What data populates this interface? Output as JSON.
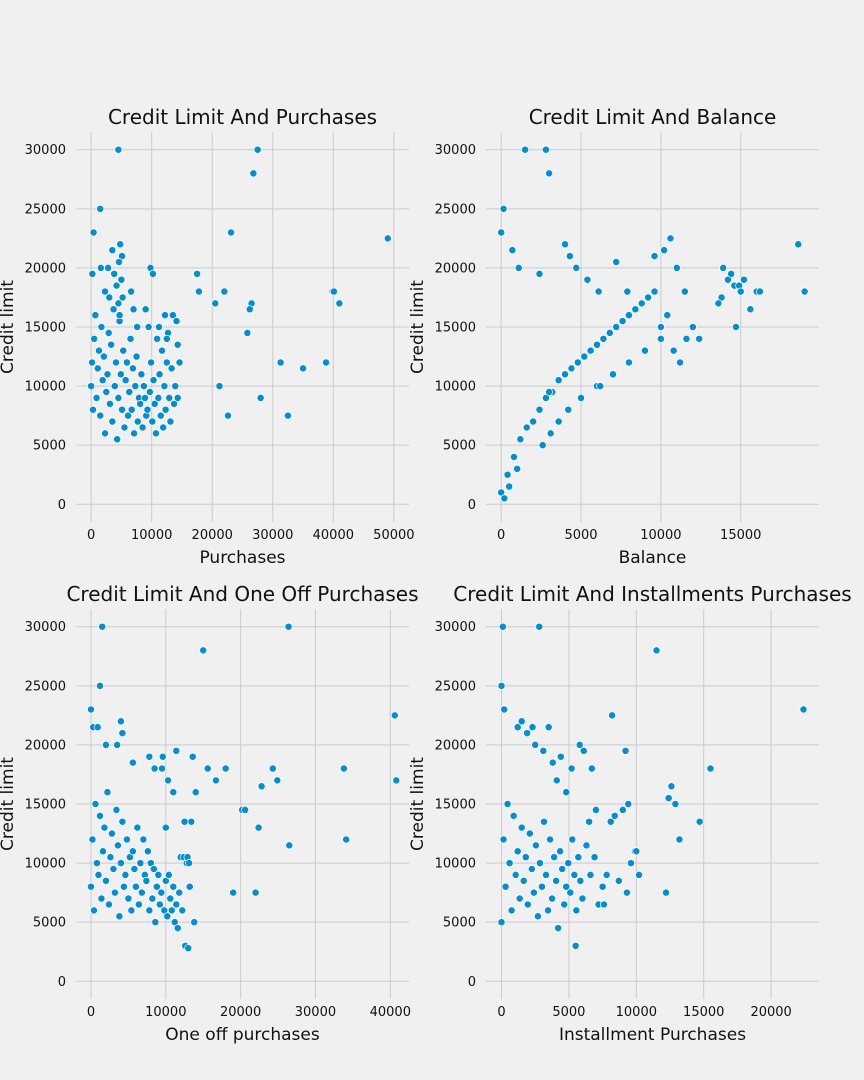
{
  "page": {
    "background": "#f0f0f0",
    "grid_color": "#cbcbcb",
    "point_color": "#008fd5",
    "point_edge_color": "#ffffff"
  },
  "chart_data": [
    {
      "type": "scatter",
      "title": "Credit Limit And Purchases",
      "xlabel": "Purchases",
      "ylabel": "Credit limit",
      "xlim": [
        -2500,
        52500
      ],
      "ylim": [
        -1500,
        31500
      ],
      "xticks": [
        0,
        10000,
        20000,
        30000,
        40000,
        50000
      ],
      "yticks": [
        0,
        5000,
        10000,
        15000,
        20000,
        25000,
        30000
      ],
      "grid": true,
      "series": [
        {
          "x": [
            0,
            150,
            300,
            500,
            700,
            900,
            1100,
            1300,
            1500,
            1700,
            1900,
            2100,
            2300,
            2500,
            2700,
            2900,
            3100,
            3300,
            3500,
            3700,
            3900,
            4100,
            4300,
            4500,
            4700,
            4900,
            5100,
            5300,
            5500,
            5700,
            5900,
            6100,
            6300,
            6500,
            6700,
            6900,
            7100,
            7300,
            7500,
            7700,
            7900,
            8100,
            8300,
            8500,
            8700,
            8900,
            9100,
            9300,
            9500,
            9700,
            9900,
            10100,
            10300,
            10500,
            10700,
            10900,
            11100,
            11300,
            11500,
            11700,
            11900,
            12100,
            12300,
            12500,
            12700,
            12900,
            13100,
            13300,
            13500,
            13700,
            13900,
            14100,
            14300,
            14500,
            4500,
            1500,
            400,
            200,
            1600,
            2800,
            3500,
            4800,
            5100,
            2300,
            3000,
            5000,
            3800,
            4200,
            4500,
            4600,
            4700,
            4500,
            5200,
            6600,
            7000,
            7600,
            9000,
            9800,
            10200,
            11200,
            12200,
            12500,
            14300,
            14600,
            17500,
            17800,
            20500,
            21200,
            22000,
            22600,
            23100,
            25800,
            26500,
            26200,
            26800,
            27500,
            28000,
            31300,
            32500,
            35000,
            38800,
            39900,
            40100,
            41000,
            49000
          ],
          "y": [
            10000,
            12000,
            8000,
            14000,
            16000,
            9000,
            11500,
            13000,
            7500,
            15000,
            10500,
            12500,
            6000,
            9500,
            11000,
            14500,
            8500,
            13500,
            7000,
            16500,
            10000,
            12000,
            5500,
            9000,
            15500,
            11000,
            8000,
            13000,
            6500,
            10500,
            12000,
            7500,
            9500,
            14000,
            8000,
            11500,
            6000,
            10000,
            12500,
            7000,
            9000,
            8500,
            11000,
            6500,
            10000,
            9000,
            7500,
            8000,
            15000,
            9500,
            12000,
            7000,
            10500,
            8500,
            6000,
            14000,
            9000,
            11000,
            7500,
            13000,
            6500,
            10000,
            8000,
            12000,
            14500,
            9000,
            7000,
            11500,
            16000,
            8500,
            10000,
            15500,
            9000,
            12000,
            30000,
            25000,
            23000,
            19500,
            20000,
            20000,
            21500,
            22000,
            21000,
            18000,
            17500,
            19000,
            19500,
            18500,
            17000,
            20500,
            16000,
            17000,
            17500,
            18000,
            16500,
            15000,
            16500,
            20000,
            19500,
            15000,
            16000,
            14000,
            13500,
            12000,
            19500,
            18000,
            17000,
            10000,
            18000,
            7500,
            23000,
            14500,
            17000,
            16500,
            28000,
            30000,
            9000,
            12000,
            7500,
            11500,
            12000,
            18000,
            18000,
            17000,
            22500
          ]
        }
      ]
    },
    {
      "type": "scatter",
      "title": "Credit Limit And Balance",
      "xlabel": "Balance",
      "ylabel": "Credit limit",
      "xlim": [
        -950,
        19900
      ],
      "ylim": [
        -1500,
        31500
      ],
      "xticks": [
        0,
        5000,
        10000,
        15000
      ],
      "yticks": [
        0,
        5000,
        10000,
        15000,
        20000,
        25000,
        30000
      ],
      "grid": true,
      "series": [
        {
          "x": [
            0,
            400,
            800,
            1200,
            1600,
            2000,
            2400,
            2800,
            3200,
            3600,
            4000,
            4400,
            4800,
            5200,
            5600,
            6000,
            6400,
            6800,
            7200,
            7600,
            8000,
            8400,
            8800,
            9200,
            9600,
            10000,
            10400,
            10800,
            11200,
            11600,
            12000,
            12400,
            13800,
            14200,
            14600,
            15200,
            15600,
            16000,
            16200,
            18600,
            19000,
            1500,
            2800,
            3000,
            150,
            0,
            700,
            1100,
            2400,
            4000,
            4300,
            4700,
            5400,
            6100,
            7200,
            7900,
            9600,
            10200,
            10600,
            11000,
            11500,
            13600,
            13900,
            14200,
            14400,
            14700,
            14900,
            15000,
            2600,
            3100,
            3600,
            4200,
            5000,
            6000,
            7000,
            8000,
            9000,
            10000,
            500,
            200,
            1000,
            3000,
            6200
          ],
          "y": [
            1000,
            2500,
            4000,
            5500,
            6500,
            7000,
            8000,
            9000,
            9500,
            10500,
            11000,
            11500,
            12000,
            12500,
            13000,
            13500,
            14000,
            14500,
            15000,
            15500,
            16000,
            16500,
            17000,
            17500,
            18000,
            15000,
            16000,
            13000,
            12000,
            14000,
            15000,
            14000,
            17500,
            19000,
            18500,
            19000,
            16500,
            18000,
            18000,
            22000,
            18000,
            30000,
            30000,
            28000,
            25000,
            23000,
            21500,
            20000,
            19500,
            22000,
            21000,
            20000,
            19000,
            18000,
            20500,
            18000,
            21000,
            21500,
            22500,
            20000,
            18000,
            17000,
            20000,
            19000,
            19500,
            15000,
            18500,
            18000,
            5000,
            6000,
            7000,
            8000,
            9000,
            10000,
            11000,
            12000,
            13000,
            14000,
            1500,
            500,
            3000,
            9500,
            10000
          ]
        }
      ]
    },
    {
      "type": "scatter",
      "title": "Credit Limit And One Off Purchases",
      "xlabel": "One off purchases",
      "ylabel": "Credit limit",
      "xlim": [
        -2000,
        42500
      ],
      "ylim": [
        -1500,
        31500
      ],
      "xticks": [
        0,
        10000,
        20000,
        30000,
        40000
      ],
      "yticks": [
        0,
        5000,
        10000,
        15000,
        20000,
        25000,
        30000
      ],
      "grid": true,
      "series": [
        {
          "x": [
            0,
            200,
            400,
            600,
            800,
            1000,
            1200,
            1400,
            1600,
            1800,
            2000,
            2200,
            2400,
            2600,
            2800,
            3000,
            3200,
            3400,
            3600,
            3800,
            4000,
            4200,
            4400,
            4600,
            4800,
            5000,
            5200,
            5400,
            5600,
            5800,
            6000,
            6200,
            6400,
            6600,
            6800,
            7000,
            7200,
            7400,
            7600,
            7800,
            8000,
            8200,
            8400,
            8600,
            8800,
            9000,
            9200,
            9400,
            9600,
            9800,
            10000,
            10200,
            10400,
            10600,
            10800,
            11000,
            11200,
            11400,
            11600,
            11800,
            12000,
            12200,
            12400,
            12600,
            12800,
            13000,
            13200,
            13400,
            13600,
            13800,
            1500,
            1200,
            0,
            300,
            900,
            2000,
            3500,
            4000,
            4200,
            5600,
            7800,
            8500,
            9500,
            10000,
            10300,
            11400,
            12500,
            14000,
            15000,
            15600,
            16700,
            18000,
            19000,
            20200,
            20600,
            22000,
            22400,
            22800,
            24300,
            24900,
            26400,
            26500,
            33800,
            34100,
            40600,
            40800,
            11000,
            12900,
            13100
          ],
          "y": [
            8000,
            12000,
            6000,
            15000,
            10000,
            9000,
            14000,
            7000,
            11000,
            13000,
            8500,
            16000,
            6500,
            10500,
            12500,
            9500,
            7500,
            14500,
            11500,
            5500,
            10000,
            13500,
            8000,
            9000,
            12000,
            7000,
            10500,
            6000,
            11000,
            9500,
            8000,
            13000,
            6500,
            10000,
            7500,
            12000,
            9000,
            8500,
            11000,
            6000,
            10000,
            7000,
            9500,
            5000,
            8000,
            9000,
            6500,
            7500,
            19000,
            6000,
            8500,
            5500,
            9000,
            7000,
            6000,
            8000,
            5000,
            6500,
            4500,
            7500,
            10500,
            6000,
            10500,
            3000,
            10000,
            2800,
            8000,
            13500,
            19000,
            5000,
            30000,
            25000,
            23000,
            21500,
            21500,
            20000,
            20000,
            22000,
            21000,
            18500,
            19000,
            18000,
            18000,
            13000,
            17000,
            19500,
            13500,
            16000,
            28000,
            18000,
            17000,
            18000,
            7500,
            14500,
            14500,
            7500,
            13000,
            16500,
            18000,
            17000,
            30000,
            11500,
            18000,
            12000,
            22500,
            17000,
            16000,
            10500,
            10000
          ]
        }
      ]
    },
    {
      "type": "scatter",
      "title": "Credit Limit And Installments Purchases",
      "xlabel": "Installment Purchases",
      "ylabel": "Credit limit",
      "xlim": [
        -1150,
        23550
      ],
      "ylim": [
        -1500,
        31500
      ],
      "xticks": [
        0,
        5000,
        10000,
        15000,
        20000
      ],
      "yticks": [
        0,
        5000,
        10000,
        15000,
        20000,
        25000,
        30000
      ],
      "grid": true,
      "series": [
        {
          "x": [
            0,
            150,
            300,
            450,
            600,
            750,
            900,
            1050,
            1200,
            1350,
            1500,
            1650,
            1800,
            1950,
            2100,
            2250,
            2400,
            2550,
            2700,
            2850,
            3000,
            3150,
            3300,
            3450,
            3600,
            3750,
            3900,
            4050,
            4200,
            4350,
            4500,
            4650,
            4800,
            4950,
            5100,
            5250,
            5400,
            5550,
            5700,
            5850,
            6000,
            6300,
            6600,
            6900,
            7200,
            7500,
            7800,
            8100,
            8400,
            8700,
            9000,
            9300,
            9600,
            9900,
            10200,
            100,
            0,
            200,
            1200,
            1500,
            1900,
            2300,
            2500,
            2800,
            3100,
            3500,
            3800,
            4100,
            4400,
            4800,
            5200,
            5800,
            6100,
            6500,
            7000,
            8200,
            9200,
            9400,
            10000,
            11500,
            12200,
            12400,
            12600,
            12900,
            13200,
            14700,
            15500,
            22400,
            5500,
            6700,
            7600
          ],
          "y": [
            5000,
            12000,
            8000,
            15000,
            10000,
            6000,
            14000,
            9000,
            11000,
            7000,
            13000,
            8500,
            10500,
            6500,
            12500,
            9500,
            7500,
            11500,
            5500,
            10000,
            8000,
            13500,
            9000,
            6000,
            12000,
            7000,
            10500,
            8500,
            4500,
            11000,
            9500,
            6500,
            8000,
            10000,
            7500,
            12000,
            9000,
            6000,
            10500,
            8500,
            7000,
            11500,
            9000,
            10500,
            6500,
            8000,
            9000,
            13500,
            14000,
            8500,
            14500,
            7500,
            10000,
            11000,
            9000,
            30000,
            25000,
            23000,
            21500,
            22000,
            21000,
            21500,
            20000,
            30000,
            19500,
            21500,
            18500,
            17000,
            19000,
            16000,
            18000,
            20000,
            19500,
            13500,
            14500,
            22500,
            19500,
            15000,
            11000,
            28000,
            7500,
            15500,
            16500,
            15000,
            12000,
            13500,
            18000,
            23000,
            3000,
            18000,
            6500
          ]
        }
      ]
    }
  ]
}
